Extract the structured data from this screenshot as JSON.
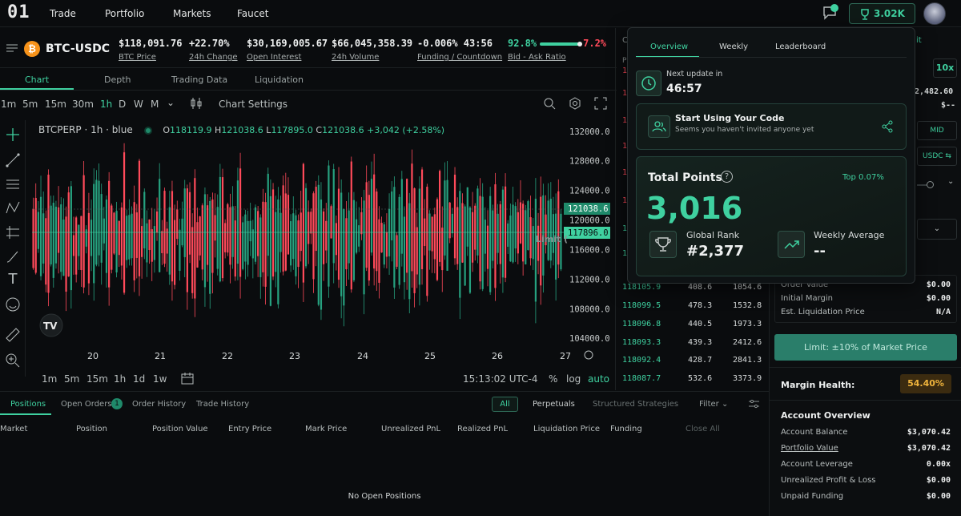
{
  "nav": {
    "logo": "01",
    "links": [
      "Trade",
      "Portfolio",
      "Markets",
      "Faucet"
    ],
    "points": "3.02K"
  },
  "ticker": {
    "pair": "BTC-USDC",
    "stats": [
      {
        "value": "$118,091.76",
        "label": "BTC Price",
        "color": "#eef0f0"
      },
      {
        "value": "+22.70%",
        "label": "24h Change",
        "color": "#3fd1a0"
      },
      {
        "value": "$30,169,005.67",
        "label": "Open Interest",
        "color": "#eef0f0"
      },
      {
        "value": "$66,045,358.39",
        "label": "24h Volume",
        "color": "#eef0f0"
      },
      {
        "value": "-0.006% 43:56",
        "label": "Funding / Countdown",
        "color": "#ff4a5a"
      }
    ],
    "bid_pct": "92.8%",
    "ask_pct": "7.2%",
    "bid_label": "Bid - Ask Ratio",
    "bid_fraction": 0.928
  },
  "chart_tabs": [
    "Chart",
    "Depth",
    "Trading Data",
    "Liquidation"
  ],
  "timeframes": [
    "1m",
    "5m",
    "15m",
    "30m",
    "1h",
    "D",
    "W",
    "M"
  ],
  "chart_settings": "Chart Settings",
  "legend": {
    "symbol": "BTCPERP · 1h · blue",
    "o": "118119.9",
    "h": "121038.6",
    "l": "117895.0",
    "c": "121038.6",
    "chg": "+3,042 (+2.58%)"
  },
  "chart_data": {
    "type": "candlestick",
    "x_ticks": [
      "20",
      "21",
      "22",
      "23",
      "24",
      "25",
      "26",
      "27"
    ],
    "y_ticks": [
      "132000.0",
      "128000.0",
      "124000.0",
      "120000.0",
      "116000.0",
      "112000.0",
      "108000.0",
      "104000.0"
    ],
    "ylim": [
      102500,
      133500
    ],
    "last_price": "121038.6",
    "cross_price": "117896.0",
    "limit_label": "Limit (",
    "candles_reference_close": 118000
  },
  "bottom_tf": [
    "1m",
    "5m",
    "15m",
    "1h",
    "1d",
    "1w"
  ],
  "clock": "15:13:02 UTC-4",
  "scale": {
    "pct": "%",
    "log": "log",
    "auto": "auto"
  },
  "orderbook": {
    "tab": "C",
    "header": "P",
    "rows": [
      [
        "118105.9",
        "408.6",
        "1054.6"
      ],
      [
        "118099.5",
        "478.3",
        "1532.8"
      ],
      [
        "118096.8",
        "440.5",
        "1973.3"
      ],
      [
        "118093.3",
        "439.3",
        "2412.6"
      ],
      [
        "118092.4",
        "428.7",
        "2841.3"
      ],
      [
        "118087.7",
        "532.6",
        "3373.9"
      ]
    ],
    "edge_digits": [
      "1",
      "1",
      "1",
      "1",
      "1",
      "1",
      "1",
      "1"
    ],
    "mid_digit": "1"
  },
  "positions": {
    "tabs": [
      "Positions",
      "Open Orders",
      "Order History",
      "Trade History"
    ],
    "open_orders_count": "1",
    "filters": [
      "All",
      "Perpetuals",
      "Structured Strategies"
    ],
    "filter_label": "Filter",
    "columns": [
      "Market",
      "Position",
      "Position Value",
      "Entry Price",
      "Mark Price",
      "Unrealized PnL",
      "Realized PnL",
      "Liquidation Price",
      "Funding",
      "Close All"
    ],
    "empty": "No Open Positions"
  },
  "right": {
    "edge": "it",
    "lev": "10x",
    "price": "2,482.60",
    "dash": "$--",
    "mid": "MID",
    "usdc": "USDC",
    "order": [
      [
        "Order Value",
        "$0.00"
      ],
      [
        "Initial Margin",
        "$0.00"
      ],
      [
        "Est. Liquidation Price",
        "N/A"
      ]
    ],
    "limit_btn": "Limit: ±10% of Market Price",
    "margin_health": "Margin Health:",
    "margin_value": "54.40%",
    "account_title": "Account Overview",
    "account": [
      [
        "Account Balance",
        "$3,070.42"
      ],
      [
        "Portfolio Value",
        "$3,070.42"
      ],
      [
        "Account Leverage",
        "0.00x"
      ],
      [
        "Unrealized Profit & Loss",
        "$0.00"
      ],
      [
        "Unpaid Funding",
        "$0.00"
      ]
    ]
  },
  "popup": {
    "tabs": [
      "Overview",
      "Weekly",
      "Leaderboard"
    ],
    "next_update_label": "Next update in",
    "next_update": "46:57",
    "code_title": "Start Using Your Code",
    "code_sub": "Seems you haven't invited anyone yet",
    "total_label": "Total Points",
    "top": "Top 0.07%",
    "total": "3,016",
    "rank_label": "Global Rank",
    "rank": "#2,377",
    "weekly_label": "Weekly Average",
    "weekly": "--"
  }
}
